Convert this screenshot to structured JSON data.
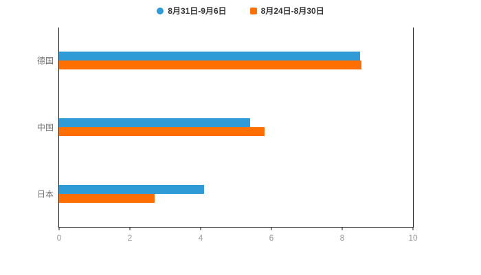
{
  "chart_data": {
    "type": "bar",
    "orientation": "horizontal",
    "title": "",
    "categories": [
      "德国",
      "中国",
      "日本"
    ],
    "series": [
      {
        "name": "8月31日-9月6日",
        "color": "#2E9BD6",
        "marker": "circle",
        "values": [
          8.5,
          5.4,
          4.1
        ]
      },
      {
        "name": "8月24日-8月30日",
        "color": "#FF6F00",
        "marker": "square",
        "values": [
          8.55,
          5.8,
          2.7
        ]
      }
    ],
    "xlabel": "",
    "ylabel": "",
    "xlim": [
      0,
      10
    ],
    "xticks": [
      0,
      2,
      4,
      6,
      8,
      10
    ],
    "grid": false,
    "legend_position": "top"
  },
  "colors": {
    "background": "#ffffff",
    "axis_line": "#1a1a1a",
    "tick_label": "#999999",
    "category_label": "#757575",
    "legend_text": "#333333"
  }
}
